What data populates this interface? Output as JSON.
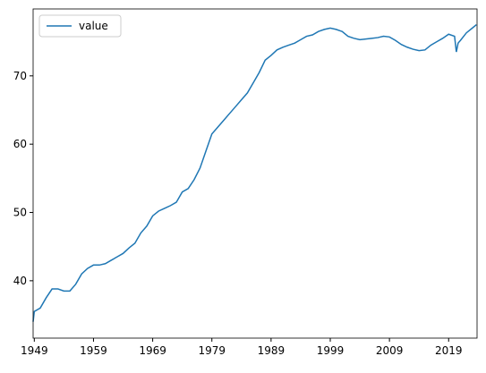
{
  "chart_data": {
    "type": "line",
    "x": [
      1948.8,
      1949,
      1950,
      1951,
      1952,
      1953,
      1954,
      1955,
      1956,
      1957,
      1958,
      1959,
      1960,
      1961,
      1962,
      1963,
      1964,
      1965,
      1966,
      1967,
      1968,
      1969,
      1970,
      1971,
      1972,
      1973,
      1974,
      1975,
      1976,
      1977,
      1978,
      1979,
      1980,
      1981,
      1982,
      1983,
      1984,
      1985,
      1986,
      1987,
      1988,
      1989,
      1990,
      1991,
      1992,
      1993,
      1994,
      1995,
      1996,
      1997,
      1998,
      1999,
      2000,
      2001,
      2002,
      2003,
      2004,
      2005,
      2006,
      2007,
      2008,
      2009,
      2010,
      2011,
      2012,
      2013,
      2014,
      2015,
      2016,
      2017,
      2018,
      2019,
      2020,
      2020.3,
      2020.6,
      2021,
      2022,
      2023,
      2023.7
    ],
    "series": [
      {
        "name": "value",
        "color": "#1f77b4",
        "values": [
          34.0,
          35.5,
          36.0,
          37.5,
          38.8,
          38.8,
          38.5,
          38.5,
          39.5,
          41.0,
          41.8,
          42.3,
          42.3,
          42.5,
          43.0,
          43.5,
          44.0,
          44.8,
          45.5,
          47.0,
          48.0,
          49.5,
          50.2,
          50.6,
          51.0,
          51.5,
          53.0,
          53.5,
          54.8,
          56.5,
          59.0,
          61.5,
          62.5,
          63.5,
          64.5,
          65.5,
          66.5,
          67.5,
          69.0,
          70.5,
          72.3,
          73.0,
          73.8,
          74.2,
          74.5,
          74.8,
          75.3,
          75.8,
          76.0,
          76.5,
          76.8,
          77.0,
          76.8,
          76.5,
          75.8,
          75.5,
          75.3,
          75.4,
          75.5,
          75.6,
          75.8,
          75.7,
          75.2,
          74.6,
          74.2,
          73.9,
          73.7,
          73.8,
          74.5,
          75.0,
          75.5,
          76.1,
          75.8,
          73.5,
          74.8,
          75.2,
          76.3,
          77.0,
          77.5
        ]
      }
    ],
    "xlim": [
      1948.8,
      2023.8
    ],
    "xticks": [
      1949,
      1959,
      1969,
      1979,
      1989,
      1999,
      2009,
      2019
    ],
    "ylim": [
      31.6,
      79.8
    ],
    "yticks": [
      40,
      50,
      60,
      70
    ],
    "legend": "upper left"
  }
}
